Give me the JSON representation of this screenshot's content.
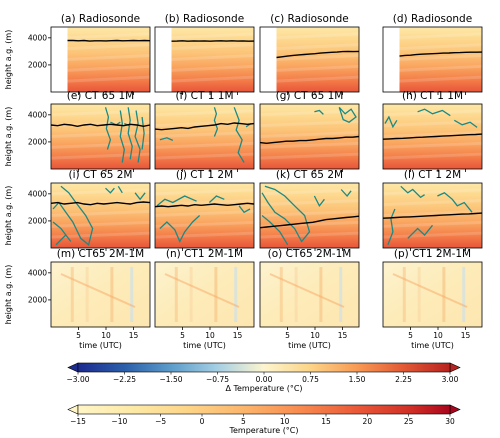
{
  "figure": {
    "row_ylabel": "height a.g. (m)",
    "xlabel": "time (UTC)"
  },
  "colors": {
    "temp_ramp": [
      "#fff5c6",
      "#fde9a6",
      "#fdd487",
      "#fcb46b",
      "#f88a4f",
      "#ea5938",
      "#cf2d26",
      "#a9051d"
    ],
    "delta_ramp": [
      "#1d2a90",
      "#2b5faa",
      "#5d9ccb",
      "#a6cfe4",
      "#fdf5cf",
      "#fcd488",
      "#f89a55",
      "#e25935",
      "#b8221f"
    ],
    "boundary_line": "#000000",
    "contour": "#1a8a85",
    "frame": "#000000"
  },
  "chart_data": {
    "type": "heatmap",
    "x_ticks": [
      "5",
      "10",
      "15"
    ],
    "x_range": [
      0,
      18
    ],
    "y_ticks": [
      "2000",
      "4000"
    ],
    "y_range": [
      0,
      4800
    ],
    "panels": [
      {
        "title": "(a) Radiosonde",
        "kind": "temperature",
        "data_start": 3,
        "line": [
          3800,
          3800,
          3780,
          3800,
          3760,
          3780,
          3780,
          3770,
          3790,
          3800,
          3780,
          3790,
          3800,
          3790,
          3800,
          3790
        ],
        "contour": "none"
      },
      {
        "title": "(b) Radiosonde",
        "kind": "temperature",
        "data_start": 3,
        "line": [
          3750,
          3760,
          3780,
          3750,
          3770,
          3760,
          3770,
          3750,
          3770,
          3780,
          3760,
          3780,
          3760,
          3770,
          3750,
          3760
        ],
        "contour": "none"
      },
      {
        "title": "(c) Radiosonde",
        "kind": "temperature",
        "data_start": 3,
        "line": [
          2550,
          2600,
          2650,
          2700,
          2740,
          2770,
          2800,
          2830,
          2870,
          2900,
          2930,
          2950,
          2980,
          3000,
          2980,
          3000
        ],
        "contour": "none"
      },
      {
        "title": "(d) Radiosonde",
        "kind": "temperature",
        "data_start": 3,
        "line": [
          2650,
          2700,
          2720,
          2760,
          2790,
          2810,
          2830,
          2850,
          2870,
          2880,
          2900,
          2910,
          2930,
          2940,
          2940,
          2950
        ],
        "contour": "none"
      },
      {
        "title": "(e) CT 65 1M",
        "kind": "temperature",
        "data_start": 0,
        "line": [
          3250,
          3200,
          3300,
          3250,
          3150,
          3250,
          3300,
          3200,
          3250,
          3300,
          3250,
          3200,
          3300,
          3250,
          3150,
          3250
        ],
        "contour": "e"
      },
      {
        "title": "(f) CT 1 1M",
        "kind": "temperature",
        "data_start": 0,
        "line": [
          2950,
          2900,
          2950,
          3000,
          3050,
          3000,
          3100,
          3150,
          3200,
          3250,
          3350,
          3300,
          3400,
          3350,
          3300,
          3350
        ],
        "contour": "f"
      },
      {
        "title": "(g) CT 65 1M",
        "kind": "temperature",
        "data_start": 0,
        "line": [
          1950,
          1900,
          1950,
          2000,
          2050,
          2050,
          2100,
          2100,
          2150,
          2200,
          2250,
          2250,
          2300,
          2350,
          2350,
          2400
        ],
        "contour": "g"
      },
      {
        "title": "(h) CT 1 1M",
        "kind": "temperature",
        "data_start": 0,
        "line": [
          2200,
          2220,
          2250,
          2270,
          2300,
          2330,
          2350,
          2380,
          2400,
          2430,
          2450,
          2480,
          2500,
          2530,
          2550,
          2580
        ],
        "contour": "h"
      },
      {
        "title": "(i) CT 65 2M",
        "kind": "temperature",
        "data_start": 0,
        "line": [
          3300,
          3350,
          3250,
          3300,
          3350,
          3250,
          3200,
          3300,
          3250,
          3300,
          3350,
          3300,
          3250,
          3350,
          3400,
          3350
        ],
        "contour": "i"
      },
      {
        "title": "(j) CT 1 2M",
        "kind": "temperature",
        "data_start": 0,
        "line": [
          3050,
          3100,
          3050,
          3100,
          3150,
          3100,
          3200,
          3150,
          3200,
          3250,
          3200,
          3150,
          3200,
          3250,
          3300,
          3250
        ],
        "contour": "j"
      },
      {
        "title": "(k) CT 65 2M",
        "kind": "temperature",
        "data_start": 0,
        "line": [
          1500,
          1550,
          1600,
          1650,
          1700,
          1750,
          1800,
          1850,
          1900,
          2000,
          2100,
          2150,
          2200,
          2250,
          2300,
          2350
        ],
        "contour": "k"
      },
      {
        "title": "(l) CT 1 2M",
        "kind": "temperature",
        "data_start": 0,
        "line": [
          2200,
          2220,
          2250,
          2280,
          2300,
          2320,
          2350,
          2380,
          2400,
          2430,
          2450,
          2480,
          2500,
          2520,
          2550,
          2580
        ],
        "contour": "l"
      },
      {
        "title": "(m) CT65 2M-1M",
        "kind": "delta",
        "data_start": 0,
        "line": [],
        "contour": "none"
      },
      {
        "title": "(n) CT1 2M-1M",
        "kind": "delta",
        "data_start": 0,
        "line": [],
        "contour": "none"
      },
      {
        "title": "(o) CT65 2M-1M",
        "kind": "delta",
        "data_start": 0,
        "line": [],
        "contour": "none"
      },
      {
        "title": "(p) CT1 2M-1M",
        "kind": "delta",
        "data_start": 0,
        "line": [],
        "contour": "none"
      }
    ],
    "colorbars": [
      {
        "label": "Δ Temperature (°C)",
        "range": [
          -3.0,
          3.0
        ],
        "ticks": [
          "−3.00",
          "−2.25",
          "−1.50",
          "−0.75",
          "0.00",
          "0.75",
          "1.50",
          "2.25",
          "3.00"
        ],
        "extend": "both"
      },
      {
        "label": "Temperature (°C)",
        "range": [
          -15,
          30
        ],
        "ticks": [
          "−15",
          "−10",
          "−5",
          "0",
          "5",
          "10",
          "15",
          "20",
          "25",
          "30"
        ],
        "extend": "both"
      }
    ]
  }
}
